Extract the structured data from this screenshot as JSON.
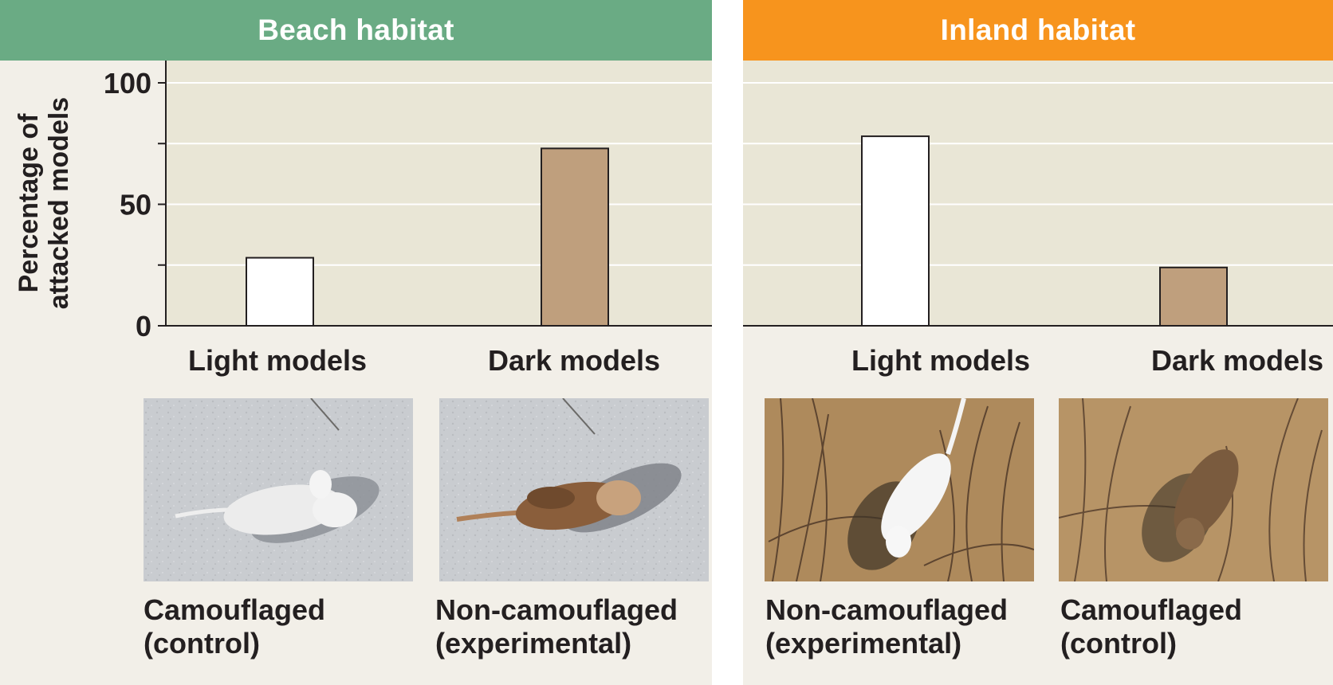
{
  "colors": {
    "beach_header": "#6aab84",
    "inland_header": "#f7941d",
    "light_bar": "#ffffff",
    "dark_bar": "#bf9f7d",
    "plot_bg": "#e9e6d6",
    "panel_bg": "#f2efe8"
  },
  "ylabel_line1": "Percentage of",
  "ylabel_line2": "attacked models",
  "chart_data": [
    {
      "type": "bar",
      "title": "Beach habitat",
      "ylabel": "Percentage of attacked models",
      "ylim": [
        0,
        100
      ],
      "yticks": [
        0,
        50,
        100
      ],
      "grid": true,
      "categories": [
        "Light models",
        "Dark models"
      ],
      "values": [
        28,
        73
      ],
      "bar_colors": [
        "#ffffff",
        "#bf9f7d"
      ],
      "captions": [
        [
          "Camouflaged",
          "(control)"
        ],
        [
          "Non-camouflaged",
          "(experimental)"
        ]
      ]
    },
    {
      "type": "bar",
      "title": "Inland habitat",
      "ylim": [
        0,
        100
      ],
      "grid": true,
      "categories": [
        "Light models",
        "Dark models"
      ],
      "values": [
        78,
        24
      ],
      "bar_colors": [
        "#ffffff",
        "#bf9f7d"
      ],
      "captions": [
        [
          "Non-camouflaged",
          "(experimental)"
        ],
        [
          "Camouflaged",
          "(control)"
        ]
      ]
    }
  ],
  "photos": {
    "beach": [
      "sand-light-mouse-photo",
      "sand-dark-mouse-photo"
    ],
    "inland": [
      "soil-light-mouse-photo",
      "soil-dark-mouse-photo"
    ]
  }
}
